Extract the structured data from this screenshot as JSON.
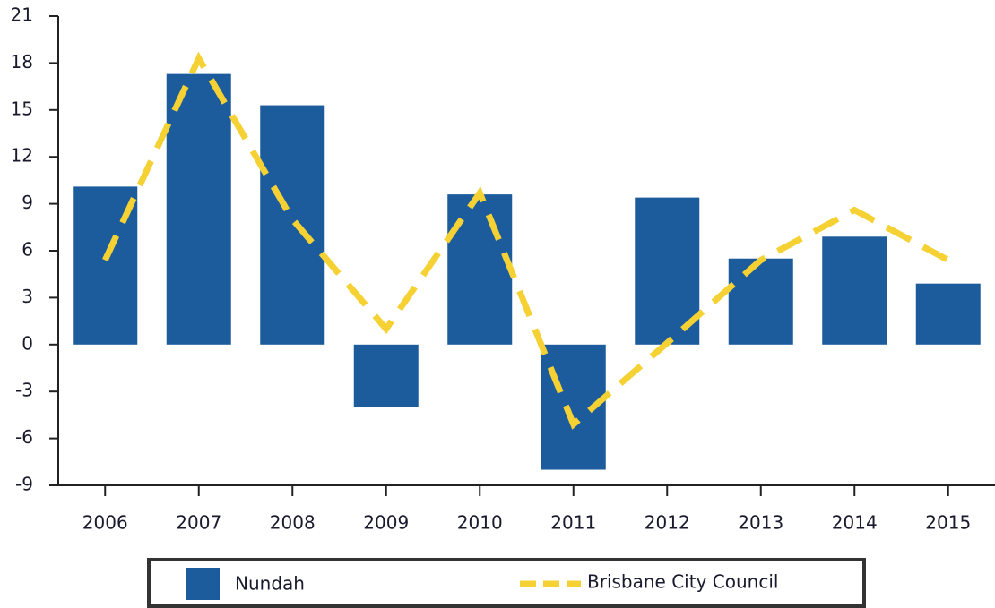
{
  "chart_data": {
    "type": "bar_line",
    "categories": [
      "2006",
      "2007",
      "2008",
      "2009",
      "2010",
      "2011",
      "2012",
      "2013",
      "2014",
      "2015"
    ],
    "series": [
      {
        "name": "Nundah",
        "type": "bar",
        "color": "#1d5c9c",
        "values": [
          10.1,
          17.3,
          15.3,
          -4.0,
          9.6,
          -8.0,
          9.4,
          5.5,
          6.9,
          3.9
        ]
      },
      {
        "name": "Brisbane City Council",
        "type": "line",
        "color": "#f5d133",
        "values": [
          5.4,
          18.3,
          8.0,
          1.0,
          9.7,
          -5.1,
          0.1,
          5.4,
          8.6,
          5.4
        ]
      }
    ],
    "ylim": [
      -9,
      21
    ],
    "yticks": [
      -9,
      -6,
      -3,
      0,
      3,
      6,
      9,
      12,
      15,
      18,
      21
    ],
    "legend": "bottom"
  }
}
